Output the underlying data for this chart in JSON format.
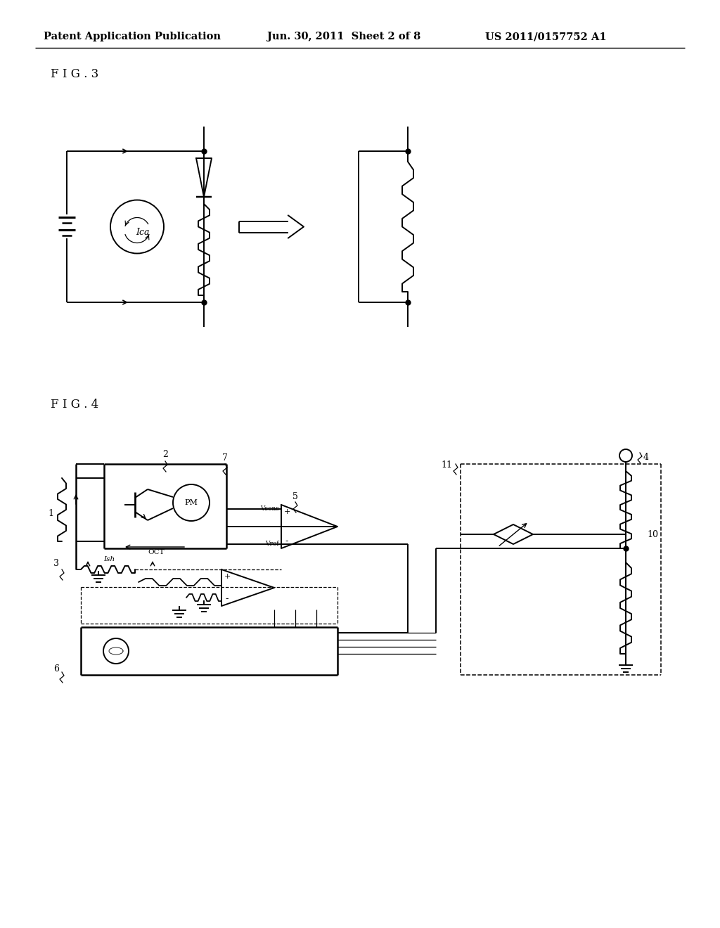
{
  "header_left": "Patent Application Publication",
  "header_mid": "Jun. 30, 2011  Sheet 2 of 8",
  "header_right": "US 2011/0157752 A1",
  "fig3_label": "F I G . 3",
  "fig4_label": "F I G . 4",
  "bg_color": "#ffffff"
}
